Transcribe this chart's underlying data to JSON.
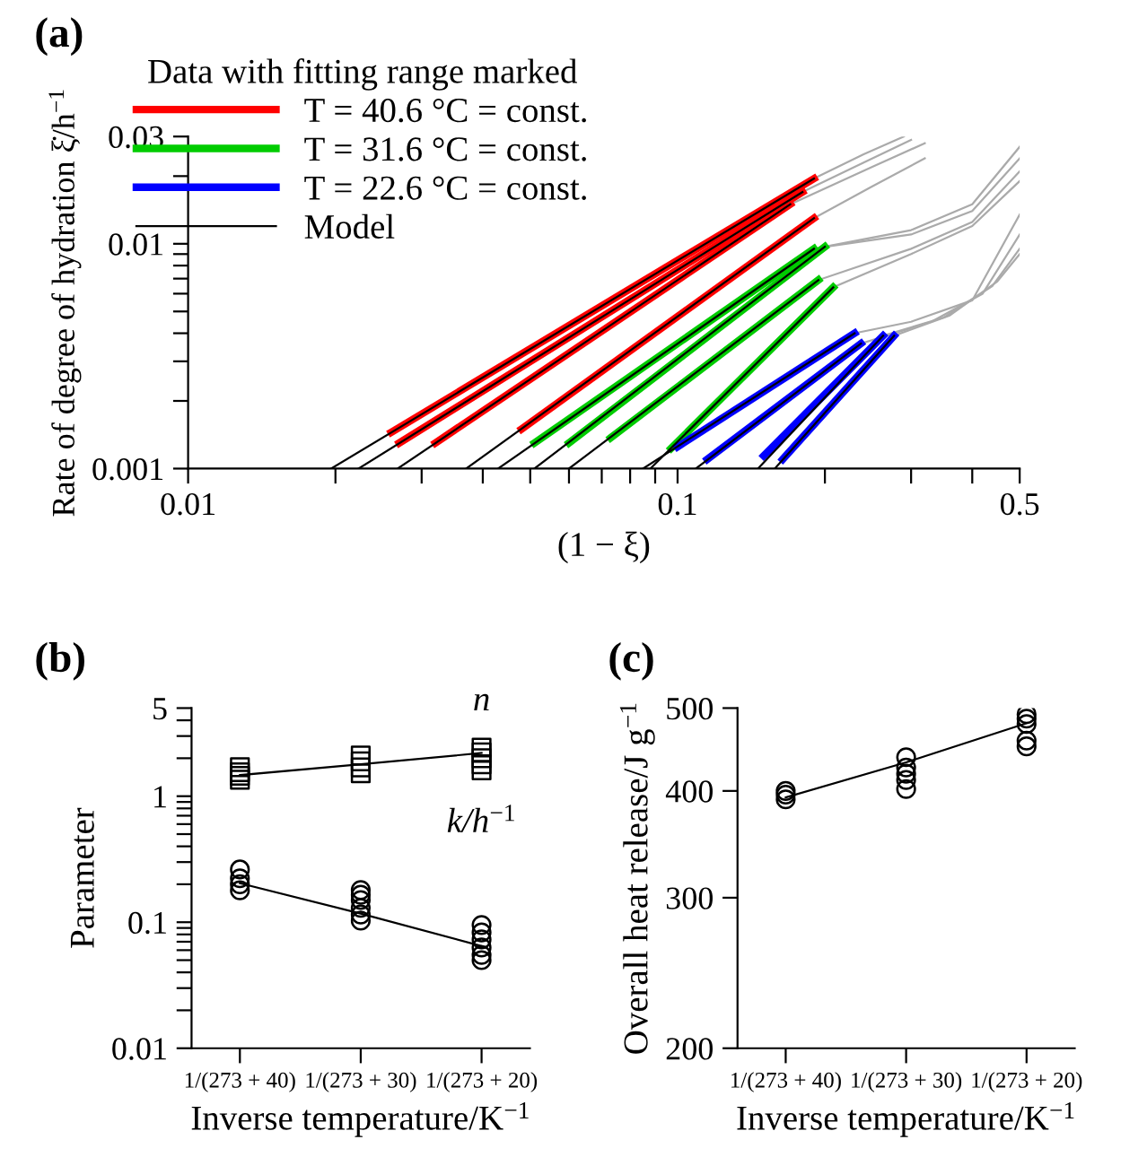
{
  "chart_data": [
    {
      "type": "line",
      "title": "(a)",
      "legend_title": "Data with fitting range marked",
      "legend": "top left",
      "log": "xy",
      "xlabel": "(1 − ξ)",
      "ylabel": "Rate of degree of hydration ξ̇/h$^{−1}$",
      "xlim": [
        0.01,
        0.5
      ],
      "ylim": [
        0.001,
        0.03
      ],
      "xticks": [
        0.01,
        {
          "value": 0.02,
          "label": null
        },
        {
          "value": 0.03,
          "label": null
        },
        {
          "value": 0.04,
          "label": null
        },
        {
          "value": 0.05,
          "label": null
        },
        {
          "value": 0.06,
          "label": null
        },
        {
          "value": 0.07,
          "label": null
        },
        {
          "value": 0.08,
          "label": null
        },
        {
          "value": 0.09,
          "label": null
        },
        0.1,
        {
          "value": 0.2,
          "label": null
        },
        {
          "value": 0.3,
          "label": null
        },
        {
          "value": 0.4,
          "label": null
        },
        0.5
      ],
      "yticks": [
        0.001,
        {
          "value": 0.002,
          "label": null
        },
        {
          "value": 0.003,
          "label": null
        },
        {
          "value": 0.004,
          "label": null
        },
        {
          "value": 0.005,
          "label": null
        },
        {
          "value": 0.006,
          "label": null
        },
        {
          "value": 0.007,
          "label": null
        },
        {
          "value": 0.008,
          "label": null
        },
        {
          "value": 0.009,
          "label": null
        },
        0.01,
        {
          "value": 0.02,
          "label": null
        },
        0.03
      ],
      "series": [
        {
          "color": "#aaaaaa",
          "x": [
            0.19,
            0.24,
            0.29
          ],
          "values": [
            0.0195,
            0.025,
            0.03
          ]
        },
        {
          "color": "#aaaaaa",
          "x": [
            0.18,
            0.24,
            0.3
          ],
          "values": [
            0.017,
            0.023,
            0.029
          ]
        },
        {
          "color": "#aaaaaa",
          "x": [
            0.17,
            0.25,
            0.32
          ],
          "values": [
            0.015,
            0.022,
            0.028
          ]
        },
        {
          "color": "#aaaaaa",
          "x": [
            0.19,
            0.25,
            0.32
          ],
          "values": [
            0.013,
            0.018,
            0.024
          ]
        },
        {
          "color": "#aaaaaa",
          "x": [
            0.19,
            0.3,
            0.4,
            0.5
          ],
          "values": [
            0.0095,
            0.0115,
            0.015,
            0.027
          ]
        },
        {
          "color": "#aaaaaa",
          "x": [
            0.2,
            0.3,
            0.4,
            0.5
          ],
          "values": [
            0.0097,
            0.011,
            0.014,
            0.024
          ]
        },
        {
          "color": "#aaaaaa",
          "x": [
            0.194,
            0.3,
            0.4,
            0.5
          ],
          "values": [
            0.0069,
            0.0095,
            0.0125,
            0.021
          ]
        },
        {
          "color": "#aaaaaa",
          "x": [
            0.208,
            0.3,
            0.4,
            0.5
          ],
          "values": [
            0.0064,
            0.009,
            0.012,
            0.019
          ]
        },
        {
          "color": "#aaaaaa",
          "x": [
            0.23,
            0.3,
            0.4,
            0.5
          ],
          "values": [
            0.004,
            0.0045,
            0.0056,
            0.0135
          ]
        },
        {
          "color": "#aaaaaa",
          "x": [
            0.237,
            0.33,
            0.42,
            0.5
          ],
          "values": [
            0.0036,
            0.0045,
            0.006,
            0.011
          ]
        },
        {
          "color": "#aaaaaa",
          "x": [
            0.263,
            0.35,
            0.44,
            0.5
          ],
          "values": [
            0.0039,
            0.0047,
            0.0065,
            0.0095
          ]
        },
        {
          "color": "#aaaaaa",
          "x": [
            0.277,
            0.36,
            0.45,
            0.5
          ],
          "values": [
            0.0039,
            0.0048,
            0.0068,
            0.009
          ]
        },
        {
          "name": "T = 40.6 °C = const.",
          "color": "#ff0000",
          "x": [
            0.026,
            0.19
          ],
          "values": [
            0.00145,
            0.0195
          ]
        },
        {
          "color": "#ff0000",
          "x": [
            0.027,
            0.18
          ],
          "values": [
            0.0013,
            0.017
          ]
        },
        {
          "color": "#ff0000",
          "x": [
            0.032,
            0.17
          ],
          "values": [
            0.0013,
            0.015
          ]
        },
        {
          "color": "#ff0000",
          "x": [
            0.048,
            0.19
          ],
          "values": [
            0.0015,
            0.013
          ]
        },
        {
          "name": "T = 31.6 °C = const.",
          "color": "#00cc00",
          "x": [
            0.051,
            0.19
          ],
          "values": [
            0.0013,
            0.0095
          ]
        },
        {
          "color": "#00cc00",
          "x": [
            0.06,
            0.2
          ],
          "values": [
            0.0013,
            0.0097
          ]
        },
        {
          "color": "#00cc00",
          "x": [
            0.073,
            0.194
          ],
          "values": [
            0.00137,
            0.0069
          ]
        },
        {
          "color": "#00cc00",
          "x": [
            0.097,
            0.208
          ],
          "values": [
            0.00123,
            0.0064
          ]
        },
        {
          "name": "T = 22.6 °C = const.",
          "color": "#0000ff",
          "x": [
            0.1,
            0.23
          ],
          "values": [
            0.00125,
            0.004
          ]
        },
        {
          "color": "#0000ff",
          "x": [
            0.115,
            0.237
          ],
          "values": [
            0.0011,
            0.0036
          ]
        },
        {
          "color": "#0000ff",
          "x": [
            0.15,
            0.263
          ],
          "values": [
            0.00114,
            0.0039
          ]
        },
        {
          "color": "#0000ff",
          "x": [
            0.164,
            0.277
          ],
          "values": [
            0.0011,
            0.0039
          ]
        },
        {
          "name": "Model",
          "color": "#000000",
          "x": [
            0.0196,
            0.19
          ],
          "values": [
            0.001,
            0.0195
          ]
        },
        {
          "color": "#000000",
          "x": [
            0.0223,
            0.18
          ],
          "values": [
            0.001,
            0.017
          ]
        },
        {
          "color": "#000000",
          "x": [
            0.0268,
            0.17
          ],
          "values": [
            0.001,
            0.015
          ]
        },
        {
          "color": "#000000",
          "x": [
            0.037,
            0.19
          ],
          "values": [
            0.001,
            0.013
          ]
        },
        {
          "color": "#000000",
          "x": [
            0.043,
            0.19
          ],
          "values": [
            0.001,
            0.0095
          ]
        },
        {
          "color": "#000000",
          "x": [
            0.051,
            0.2
          ],
          "values": [
            0.001,
            0.0097
          ]
        },
        {
          "color": "#000000",
          "x": [
            0.06,
            0.194
          ],
          "values": [
            0.001,
            0.0069
          ]
        },
        {
          "color": "#000000",
          "x": [
            0.088,
            0.208
          ],
          "values": [
            0.001,
            0.0064
          ]
        },
        {
          "color": "#000000",
          "x": [
            0.085,
            0.23
          ],
          "values": [
            0.001,
            0.004
          ]
        },
        {
          "color": "#000000",
          "x": [
            0.109,
            0.237
          ],
          "values": [
            0.001,
            0.0036
          ]
        },
        {
          "color": "#000000",
          "x": [
            0.146,
            0.263
          ],
          "values": [
            0.001,
            0.0039
          ]
        },
        {
          "color": "#000000",
          "x": [
            0.158,
            0.277
          ],
          "values": [
            0.001,
            0.0039
          ]
        }
      ]
    },
    {
      "type": "scatter",
      "title": "(b)",
      "log": true,
      "xlabel": "Inverse temperature/K$^{−1}$",
      "ylabel": "Parameter",
      "categories": [
        "1/(273 + 40)",
        "1/(273 + 30)",
        "1/(273 + 20)"
      ],
      "ylim": [
        0.01,
        5
      ],
      "yticks": [
        0.01,
        {
          "value": 0.02,
          "label": null
        },
        {
          "value": 0.03,
          "label": null
        },
        {
          "value": 0.04,
          "label": null
        },
        {
          "value": 0.05,
          "label": null
        },
        {
          "value": 0.06,
          "label": null
        },
        {
          "value": 0.07,
          "label": null
        },
        {
          "value": 0.08,
          "label": null
        },
        {
          "value": 0.09,
          "label": null
        },
        0.1,
        {
          "value": 0.2,
          "label": null
        },
        {
          "value": 0.3,
          "label": null
        },
        {
          "value": 0.4,
          "label": null
        },
        {
          "value": 0.5,
          "label": null
        },
        {
          "value": 0.6,
          "label": null
        },
        {
          "value": 0.7,
          "label": null
        },
        {
          "value": 0.8,
          "label": null
        },
        {
          "value": 0.9,
          "label": null
        },
        1,
        {
          "value": 2,
          "label": null
        },
        {
          "value": 3,
          "label": null
        },
        {
          "value": 4,
          "label": null
        },
        5
      ],
      "series": [
        {
          "name": "n",
          "color": "#000000",
          "marker": "square",
          "x": [
            "1/(273 + 40)",
            "1/(273 + 40)",
            "1/(273 + 40)",
            "1/(273 + 40)",
            "1/(273 + 30)",
            "1/(273 + 30)",
            "1/(273 + 30)",
            "1/(273 + 30)",
            "1/(273 + 20)",
            "1/(273 + 20)",
            "1/(273 + 20)",
            "1/(273 + 20)",
            "1/(273 + 20)"
          ],
          "values": [
            1.35,
            1.45,
            1.55,
            1.7,
            1.52,
            1.69,
            1.89,
            2.1,
            1.6,
            1.79,
            2.0,
            2.23,
            2.43
          ]
        },
        {
          "name": "k/h$^{−1}$",
          "color": "#000000",
          "marker": "circle",
          "x": [
            "1/(273 + 40)",
            "1/(273 + 40)",
            "1/(273 + 40)",
            "1/(273 + 40)",
            "1/(273 + 30)",
            "1/(273 + 30)",
            "1/(273 + 30)",
            "1/(273 + 30)",
            "1/(273 + 30)",
            "1/(273 + 30)",
            "1/(273 + 20)",
            "1/(273 + 20)",
            "1/(273 + 20)",
            "1/(273 + 20)",
            "1/(273 + 20)",
            "1/(273 + 20)"
          ],
          "values": [
            0.179,
            0.2,
            0.223,
            0.262,
            0.103,
            0.115,
            0.13,
            0.15,
            0.165,
            0.18,
            0.05,
            0.055,
            0.063,
            0.073,
            0.083,
            0.095
          ]
        },
        {
          "type": "line",
          "color": "#000000",
          "x": [
            "1/(273 + 40)",
            "1/(273 + 30)",
            "1/(273 + 20)"
          ],
          "values": [
            1.47,
            1.79,
            2.2
          ]
        },
        {
          "type": "line",
          "color": "#000000",
          "x": [
            "1/(273 + 40)",
            "1/(273 + 30)",
            "1/(273 + 20)"
          ],
          "values": [
            0.204,
            0.117,
            0.0647
          ]
        }
      ]
    },
    {
      "type": "scatter",
      "title": "(c)",
      "log": true,
      "xlabel": "Inverse temperature/K$^{−1}$",
      "ylabel": "Overall heat release/J g$^{−1}$",
      "categories": [
        "1/(273 + 40)",
        "1/(273 + 30)",
        "1/(273 + 20)"
      ],
      "ylim": [
        200,
        500
      ],
      "yticks": [
        200,
        300,
        400,
        500
      ],
      "series": [
        {
          "color": "#000000",
          "marker": "circle",
          "x": [
            "1/(273 + 40)",
            "1/(273 + 40)",
            "1/(273 + 40)",
            "1/(273 + 30)",
            "1/(273 + 30)",
            "1/(273 + 30)",
            "1/(273 + 30)",
            "1/(273 + 30)",
            "1/(273 + 20)",
            "1/(273 + 20)",
            "1/(273 + 20)",
            "1/(273 + 20)",
            "1/(273 + 20)"
          ],
          "values": [
            391,
            396,
            400,
            402,
            412,
            419,
            426,
            438,
            451,
            458,
            479,
            486,
            492
          ]
        },
        {
          "type": "line",
          "color": "#000000",
          "x": [
            "1/(273 + 40)",
            "1/(273 + 30)",
            "1/(273 + 20)"
          ],
          "values": [
            393,
            432,
            480
          ]
        }
      ]
    }
  ]
}
